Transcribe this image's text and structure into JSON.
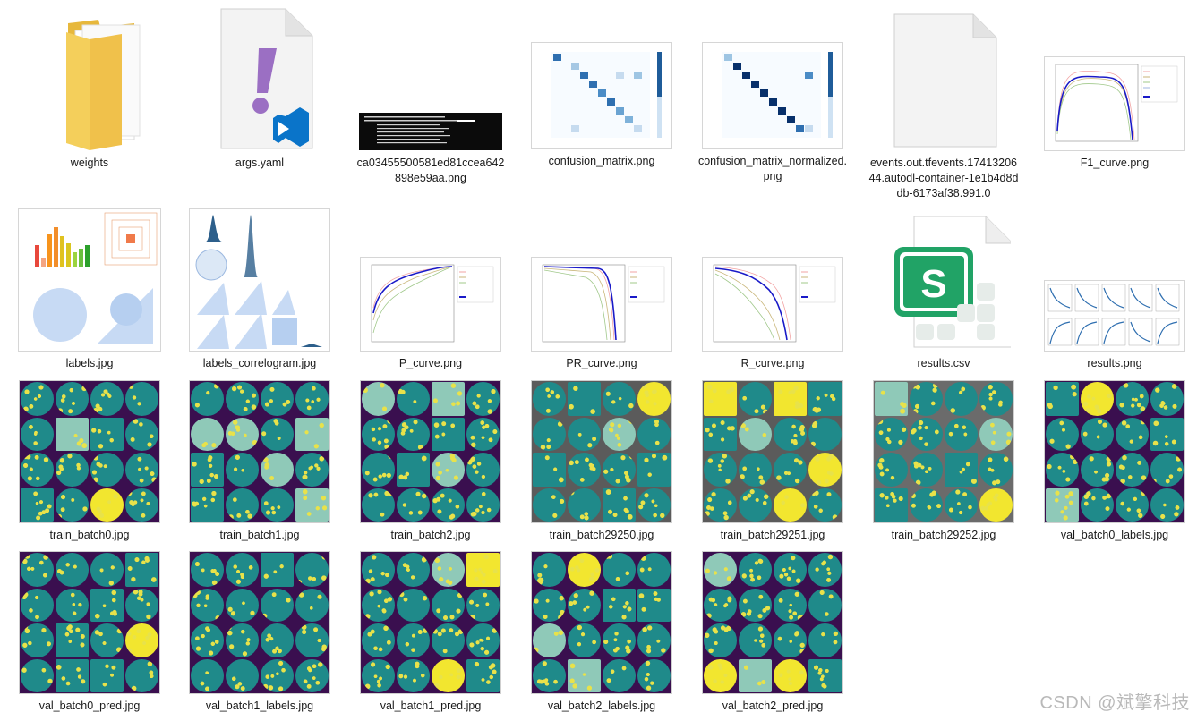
{
  "files": [
    {
      "id": "weights",
      "name": "weights",
      "kind": "folder"
    },
    {
      "id": "args",
      "name": "args.yaml",
      "kind": "yaml"
    },
    {
      "id": "terminal",
      "name": "ca03455500581ed81ccea642898e59aa.png",
      "kind": "image"
    },
    {
      "id": "cm",
      "name": "confusion_matrix.png",
      "kind": "image"
    },
    {
      "id": "cmn",
      "name": "confusion_matrix_normalized.png",
      "kind": "image"
    },
    {
      "id": "events",
      "name": "events.out.tfevents.1741320644.autodl-container-1e1b4d8ddb-6173af38.991.0",
      "kind": "file"
    },
    {
      "id": "f1",
      "name": "F1_curve.png",
      "kind": "image"
    },
    {
      "id": "labels",
      "name": "labels.jpg",
      "kind": "image"
    },
    {
      "id": "corr",
      "name": "labels_correlogram.jpg",
      "kind": "image"
    },
    {
      "id": "p",
      "name": "P_curve.png",
      "kind": "image"
    },
    {
      "id": "pr",
      "name": "PR_curve.png",
      "kind": "image"
    },
    {
      "id": "r",
      "name": "R_curve.png",
      "kind": "image"
    },
    {
      "id": "csv",
      "name": "results.csv",
      "kind": "spreadsheet"
    },
    {
      "id": "results",
      "name": "results.png",
      "kind": "image"
    },
    {
      "id": "tb0",
      "name": "train_batch0.jpg",
      "kind": "image"
    },
    {
      "id": "tb1",
      "name": "train_batch1.jpg",
      "kind": "image"
    },
    {
      "id": "tb2",
      "name": "train_batch2.jpg",
      "kind": "image"
    },
    {
      "id": "tb29250",
      "name": "train_batch29250.jpg",
      "kind": "image"
    },
    {
      "id": "tb29251",
      "name": "train_batch29251.jpg",
      "kind": "image"
    },
    {
      "id": "tb29252",
      "name": "train_batch29252.jpg",
      "kind": "image"
    },
    {
      "id": "vb0l",
      "name": "val_batch0_labels.jpg",
      "kind": "image"
    },
    {
      "id": "vb0p",
      "name": "val_batch0_pred.jpg",
      "kind": "image"
    },
    {
      "id": "vb1l",
      "name": "val_batch1_labels.jpg",
      "kind": "image"
    },
    {
      "id": "vb1p",
      "name": "val_batch1_pred.jpg",
      "kind": "image"
    },
    {
      "id": "vb2l",
      "name": "val_batch2_labels.jpg",
      "kind": "image"
    },
    {
      "id": "vb2p",
      "name": "val_batch2_pred.jpg",
      "kind": "image"
    }
  ],
  "icons": {
    "folder": "folder-icon",
    "yaml": "yaml-file-icon",
    "file": "generic-file-icon",
    "spreadsheet": "spreadsheet-icon"
  },
  "colors": {
    "folder": "#f2c94c",
    "vscode_blue": "#0a74c9",
    "yaml_purple": "#9b6fc3",
    "sheet_green": "#21a366",
    "plate_purple": "#3a0f4f",
    "plate_teal": "#1f8a8a",
    "speck_yellow": "#e8e24a"
  },
  "watermark": "CSDN @斌擎科技"
}
